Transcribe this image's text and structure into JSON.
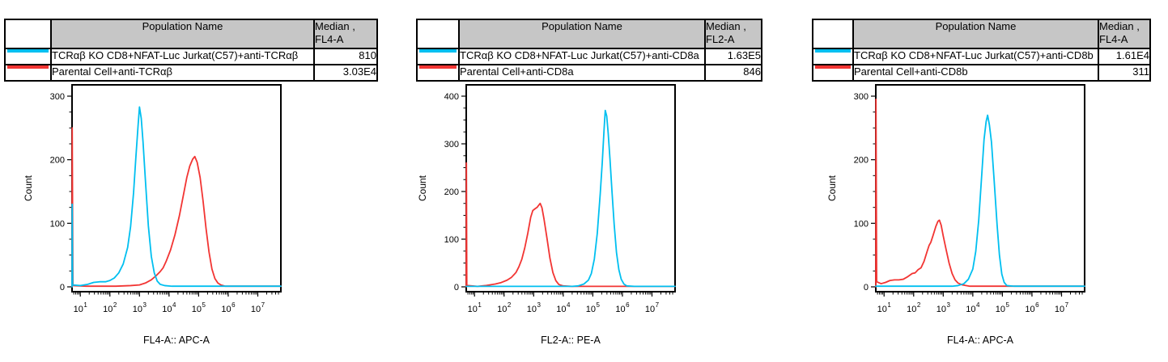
{
  "colors": {
    "ko_series": "#00BFF0",
    "parental_series": "#F23533",
    "table_header_bg": "#C6C6C6",
    "axis": "#000000"
  },
  "panels": [
    {
      "table": {
        "header_name": "Population Name",
        "header_median_line1": "Median ,",
        "header_median_line2": "FL4-A",
        "rows": [
          {
            "swatch": "cyan-line",
            "color": "#00BFF0",
            "name": "TCRαβ KO CD8+NFAT-Luc Jurkat(C57)+anti-TCRαβ",
            "median": "810"
          },
          {
            "swatch": "red-line",
            "color": "#F23533",
            "name": "Parental Cell+anti-TCRαβ",
            "median": "3.03E4"
          }
        ]
      }
    },
    {
      "table": {
        "header_name": "Population Name",
        "header_median_line1": "Median ,",
        "header_median_line2": "FL2-A",
        "rows": [
          {
            "swatch": "cyan-line",
            "color": "#00BFF0",
            "name": "TCRαβ KO CD8+NFAT-Luc Jurkat(C57)+anti-CD8a",
            "median": "1.63E5"
          },
          {
            "swatch": "red-line",
            "color": "#F23533",
            "name": "Parental Cell+anti-CD8a",
            "median": "846"
          }
        ]
      }
    },
    {
      "table": {
        "header_name": "Population Name",
        "header_median_line1": "Median ,",
        "header_median_line2": "FL4-A",
        "rows": [
          {
            "swatch": "cyan-line",
            "color": "#00BFF0",
            "name": "TCRαβ KO CD8+NFAT-Luc Jurkat(C57)+anti-CD8b",
            "median": "1.61E4"
          },
          {
            "swatch": "red-line",
            "color": "#F23533",
            "name": "Parental Cell+anti-CD8b",
            "median": "311"
          }
        ]
      }
    }
  ],
  "chart_data": [
    {
      "type": "line",
      "subtype": "flow-cytometry-histogram-overlay",
      "title": "",
      "xlabel": "FL4-A:: APC-A",
      "ylabel": "Count",
      "x_scale": "log10",
      "xlim_log": [
        0.72,
        7.78
      ],
      "x_major_tick_exponents": [
        1,
        2,
        3,
        4,
        5,
        6,
        7
      ],
      "ylim": [
        0,
        315
      ],
      "y_major_ticks": [
        0,
        100,
        200,
        300
      ],
      "y_minor_step": 25,
      "grid": false,
      "legend_position": "none",
      "series": [
        {
          "name": "Parental Cell+anti-TCRαβ",
          "color": "#F23533",
          "median": "3.03E4",
          "points_logx_count": [
            [
              0.72,
              0
            ],
            [
              0.726,
              250
            ],
            [
              0.738,
              125
            ],
            [
              0.75,
              2
            ],
            [
              1.2,
              1
            ],
            [
              2.2,
              1
            ],
            [
              2.7,
              2
            ],
            [
              3.0,
              3
            ],
            [
              3.2,
              6
            ],
            [
              3.4,
              11
            ],
            [
              3.55,
              17
            ],
            [
              3.7,
              24
            ],
            [
              3.8,
              30
            ],
            [
              3.9,
              40
            ],
            [
              4.05,
              58
            ],
            [
              4.2,
              82
            ],
            [
              4.35,
              112
            ],
            [
              4.5,
              148
            ],
            [
              4.6,
              172
            ],
            [
              4.7,
              190
            ],
            [
              4.8,
              201
            ],
            [
              4.87,
              205
            ],
            [
              4.95,
              196
            ],
            [
              5.05,
              172
            ],
            [
              5.15,
              135
            ],
            [
              5.25,
              92
            ],
            [
              5.35,
              55
            ],
            [
              5.45,
              28
            ],
            [
              5.55,
              13
            ],
            [
              5.65,
              6
            ],
            [
              5.75,
              3
            ],
            [
              5.9,
              1
            ],
            [
              7.78,
              1
            ]
          ]
        },
        {
          "name": "TCRαβ KO CD8+NFAT-Luc Jurkat(C57)+anti-TCRαβ",
          "color": "#00BFF0",
          "median": "810",
          "points_logx_count": [
            [
              0.72,
              0
            ],
            [
              0.726,
              130
            ],
            [
              0.74,
              3
            ],
            [
              1.0,
              2
            ],
            [
              1.25,
              4
            ],
            [
              1.45,
              7
            ],
            [
              1.65,
              8
            ],
            [
              1.85,
              8
            ],
            [
              2.0,
              10
            ],
            [
              2.15,
              14
            ],
            [
              2.3,
              22
            ],
            [
              2.45,
              36
            ],
            [
              2.6,
              62
            ],
            [
              2.7,
              95
            ],
            [
              2.8,
              148
            ],
            [
              2.88,
              205
            ],
            [
              2.95,
              252
            ],
            [
              3.0,
              283
            ],
            [
              3.06,
              265
            ],
            [
              3.12,
              228
            ],
            [
              3.2,
              168
            ],
            [
              3.3,
              96
            ],
            [
              3.4,
              48
            ],
            [
              3.5,
              22
            ],
            [
              3.6,
              9
            ],
            [
              3.7,
              4
            ],
            [
              3.85,
              2
            ],
            [
              4.1,
              1
            ],
            [
              7.78,
              1
            ]
          ]
        }
      ]
    },
    {
      "type": "line",
      "subtype": "flow-cytometry-histogram-overlay",
      "title": "",
      "xlabel": "FL2-A:: PE-A",
      "ylabel": "Count",
      "x_scale": "log10",
      "xlim_log": [
        0.72,
        7.78
      ],
      "x_major_tick_exponents": [
        1,
        2,
        3,
        4,
        5,
        6,
        7
      ],
      "ylim": [
        0,
        420
      ],
      "y_major_ticks": [
        0,
        100,
        200,
        300,
        400
      ],
      "y_minor_step": 25,
      "grid": false,
      "legend_position": "none",
      "series": [
        {
          "name": "Parental Cell+anti-CD8a",
          "color": "#F23533",
          "median": "846",
          "points_logx_count": [
            [
              0.72,
              0
            ],
            [
              0.726,
              260
            ],
            [
              0.74,
              3
            ],
            [
              1.1,
              1
            ],
            [
              1.4,
              3
            ],
            [
              1.7,
              6
            ],
            [
              1.9,
              9
            ],
            [
              2.1,
              14
            ],
            [
              2.25,
              20
            ],
            [
              2.4,
              30
            ],
            [
              2.5,
              42
            ],
            [
              2.6,
              58
            ],
            [
              2.7,
              82
            ],
            [
              2.8,
              112
            ],
            [
              2.9,
              146
            ],
            [
              2.97,
              160
            ],
            [
              3.05,
              164
            ],
            [
              3.12,
              167
            ],
            [
              3.18,
              172
            ],
            [
              3.22,
              175
            ],
            [
              3.28,
              166
            ],
            [
              3.35,
              142
            ],
            [
              3.45,
              102
            ],
            [
              3.55,
              60
            ],
            [
              3.65,
              30
            ],
            [
              3.75,
              13
            ],
            [
              3.85,
              5
            ],
            [
              4.0,
              2
            ],
            [
              4.3,
              1
            ],
            [
              7.78,
              1
            ]
          ]
        },
        {
          "name": "TCRαβ KO CD8+NFAT-Luc Jurkat(C57)+anti-CD8a",
          "color": "#00BFF0",
          "median": "1.63E5",
          "points_logx_count": [
            [
              0.72,
              1
            ],
            [
              4.3,
              1
            ],
            [
              4.5,
              2
            ],
            [
              4.7,
              6
            ],
            [
              4.85,
              14
            ],
            [
              4.95,
              28
            ],
            [
              5.05,
              58
            ],
            [
              5.15,
              112
            ],
            [
              5.25,
              195
            ],
            [
              5.32,
              262
            ],
            [
              5.38,
              330
            ],
            [
              5.42,
              370
            ],
            [
              5.47,
              358
            ],
            [
              5.52,
              322
            ],
            [
              5.58,
              268
            ],
            [
              5.65,
              198
            ],
            [
              5.72,
              132
            ],
            [
              5.8,
              72
            ],
            [
              5.88,
              36
            ],
            [
              5.96,
              16
            ],
            [
              6.05,
              6
            ],
            [
              6.15,
              2
            ],
            [
              6.4,
              1
            ],
            [
              7.78,
              1
            ]
          ]
        }
      ]
    },
    {
      "type": "line",
      "subtype": "flow-cytometry-histogram-overlay",
      "title": "",
      "xlabel": "FL4-A:: APC-A",
      "ylabel": "Count",
      "x_scale": "log10",
      "xlim_log": [
        0.72,
        7.78
      ],
      "x_major_tick_exponents": [
        1,
        2,
        3,
        4,
        5,
        6,
        7
      ],
      "ylim": [
        0,
        315
      ],
      "y_major_ticks": [
        0,
        100,
        200,
        300
      ],
      "y_minor_step": 25,
      "grid": false,
      "legend_position": "none",
      "series": [
        {
          "name": "Parental Cell+anti-CD8b",
          "color": "#F23533",
          "median": "311",
          "points_logx_count": [
            [
              0.72,
              0
            ],
            [
              0.726,
              295
            ],
            [
              0.736,
              170
            ],
            [
              0.75,
              8
            ],
            [
              0.9,
              5
            ],
            [
              1.05,
              7
            ],
            [
              1.2,
              10
            ],
            [
              1.35,
              11
            ],
            [
              1.5,
              11
            ],
            [
              1.65,
              12
            ],
            [
              1.8,
              16
            ],
            [
              1.95,
              21
            ],
            [
              2.05,
              22
            ],
            [
              2.15,
              27
            ],
            [
              2.25,
              30
            ],
            [
              2.35,
              40
            ],
            [
              2.45,
              55
            ],
            [
              2.52,
              65
            ],
            [
              2.58,
              70
            ],
            [
              2.65,
              80
            ],
            [
              2.75,
              95
            ],
            [
              2.82,
              103
            ],
            [
              2.87,
              105
            ],
            [
              2.93,
              97
            ],
            [
              3.0,
              80
            ],
            [
              3.1,
              58
            ],
            [
              3.2,
              37
            ],
            [
              3.3,
              21
            ],
            [
              3.4,
              11
            ],
            [
              3.5,
              6
            ],
            [
              3.65,
              3
            ],
            [
              3.9,
              1
            ],
            [
              7.78,
              1
            ]
          ]
        },
        {
          "name": "TCRαβ KO CD8+NFAT-Luc Jurkat(C57)+anti-CD8b",
          "color": "#00BFF0",
          "median": "1.61E4",
          "points_logx_count": [
            [
              0.72,
              1
            ],
            [
              3.3,
              1
            ],
            [
              3.5,
              2
            ],
            [
              3.7,
              5
            ],
            [
              3.85,
              12
            ],
            [
              4.0,
              28
            ],
            [
              4.1,
              56
            ],
            [
              4.2,
              105
            ],
            [
              4.3,
              175
            ],
            [
              4.38,
              232
            ],
            [
              4.45,
              260
            ],
            [
              4.5,
              270
            ],
            [
              4.56,
              255
            ],
            [
              4.63,
              228
            ],
            [
              4.72,
              168
            ],
            [
              4.82,
              98
            ],
            [
              4.9,
              50
            ],
            [
              4.98,
              20
            ],
            [
              5.06,
              7
            ],
            [
              5.15,
              2
            ],
            [
              5.4,
              1
            ],
            [
              7.78,
              1
            ]
          ]
        }
      ]
    }
  ]
}
